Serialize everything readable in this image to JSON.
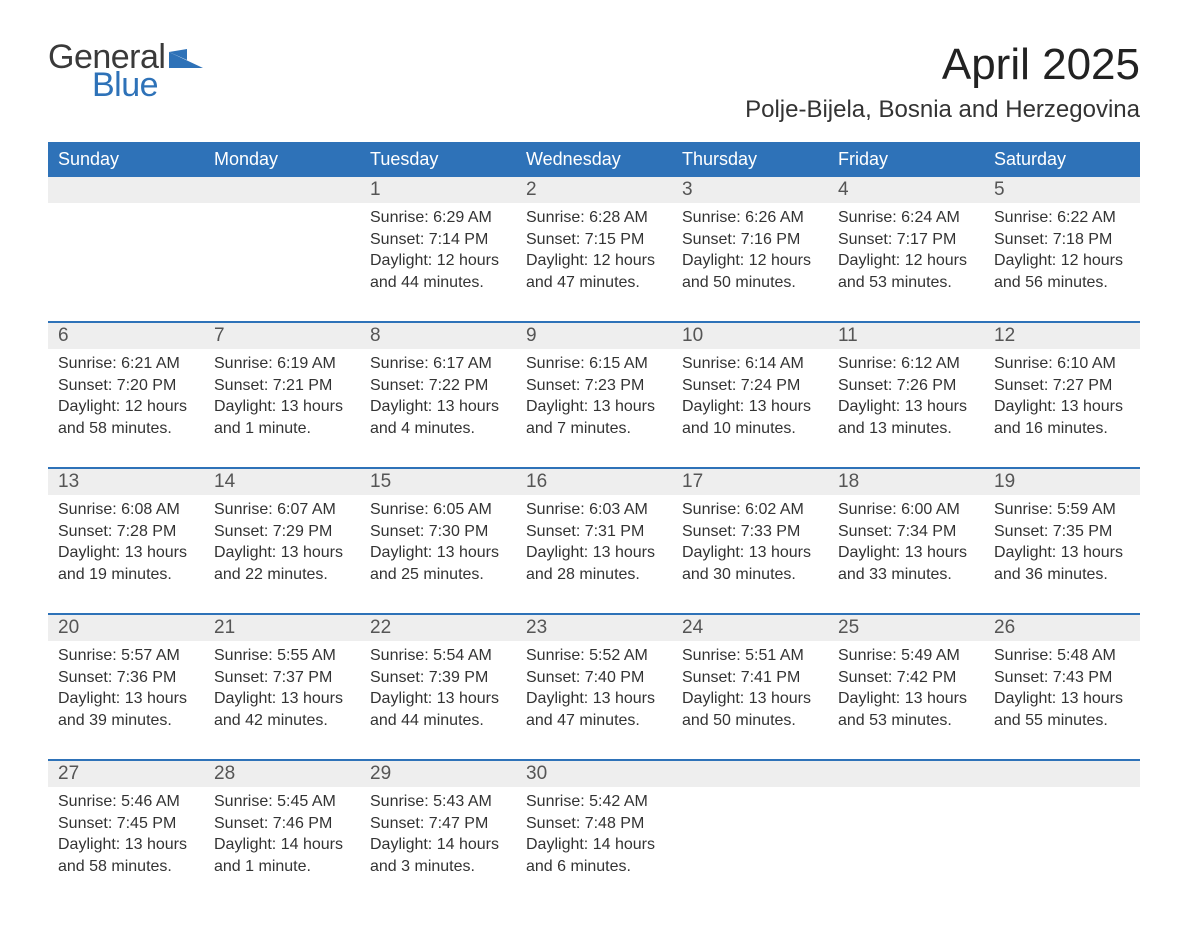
{
  "brand": {
    "word1": "General",
    "word2": "Blue",
    "mark_color": "#2e72b8"
  },
  "title": "April 2025",
  "location": "Polje-Bijela, Bosnia and Herzegovina",
  "colors": {
    "header_bg": "#2e72b8",
    "header_fg": "#ffffff",
    "daynum_bg": "#eeeeee",
    "text": "#333333"
  },
  "day_names": [
    "Sunday",
    "Monday",
    "Tuesday",
    "Wednesday",
    "Thursday",
    "Friday",
    "Saturday"
  ],
  "weeks": [
    [
      {
        "n": "",
        "lines": []
      },
      {
        "n": "",
        "lines": []
      },
      {
        "n": "1",
        "lines": [
          "Sunrise: 6:29 AM",
          "Sunset: 7:14 PM",
          "Daylight: 12 hours and 44 minutes."
        ]
      },
      {
        "n": "2",
        "lines": [
          "Sunrise: 6:28 AM",
          "Sunset: 7:15 PM",
          "Daylight: 12 hours and 47 minutes."
        ]
      },
      {
        "n": "3",
        "lines": [
          "Sunrise: 6:26 AM",
          "Sunset: 7:16 PM",
          "Daylight: 12 hours and 50 minutes."
        ]
      },
      {
        "n": "4",
        "lines": [
          "Sunrise: 6:24 AM",
          "Sunset: 7:17 PM",
          "Daylight: 12 hours and 53 minutes."
        ]
      },
      {
        "n": "5",
        "lines": [
          "Sunrise: 6:22 AM",
          "Sunset: 7:18 PM",
          "Daylight: 12 hours and 56 minutes."
        ]
      }
    ],
    [
      {
        "n": "6",
        "lines": [
          "Sunrise: 6:21 AM",
          "Sunset: 7:20 PM",
          "Daylight: 12 hours and 58 minutes."
        ]
      },
      {
        "n": "7",
        "lines": [
          "Sunrise: 6:19 AM",
          "Sunset: 7:21 PM",
          "Daylight: 13 hours and 1 minute."
        ]
      },
      {
        "n": "8",
        "lines": [
          "Sunrise: 6:17 AM",
          "Sunset: 7:22 PM",
          "Daylight: 13 hours and 4 minutes."
        ]
      },
      {
        "n": "9",
        "lines": [
          "Sunrise: 6:15 AM",
          "Sunset: 7:23 PM",
          "Daylight: 13 hours and 7 minutes."
        ]
      },
      {
        "n": "10",
        "lines": [
          "Sunrise: 6:14 AM",
          "Sunset: 7:24 PM",
          "Daylight: 13 hours and 10 minutes."
        ]
      },
      {
        "n": "11",
        "lines": [
          "Sunrise: 6:12 AM",
          "Sunset: 7:26 PM",
          "Daylight: 13 hours and 13 minutes."
        ]
      },
      {
        "n": "12",
        "lines": [
          "Sunrise: 6:10 AM",
          "Sunset: 7:27 PM",
          "Daylight: 13 hours and 16 minutes."
        ]
      }
    ],
    [
      {
        "n": "13",
        "lines": [
          "Sunrise: 6:08 AM",
          "Sunset: 7:28 PM",
          "Daylight: 13 hours and 19 minutes."
        ]
      },
      {
        "n": "14",
        "lines": [
          "Sunrise: 6:07 AM",
          "Sunset: 7:29 PM",
          "Daylight: 13 hours and 22 minutes."
        ]
      },
      {
        "n": "15",
        "lines": [
          "Sunrise: 6:05 AM",
          "Sunset: 7:30 PM",
          "Daylight: 13 hours and 25 minutes."
        ]
      },
      {
        "n": "16",
        "lines": [
          "Sunrise: 6:03 AM",
          "Sunset: 7:31 PM",
          "Daylight: 13 hours and 28 minutes."
        ]
      },
      {
        "n": "17",
        "lines": [
          "Sunrise: 6:02 AM",
          "Sunset: 7:33 PM",
          "Daylight: 13 hours and 30 minutes."
        ]
      },
      {
        "n": "18",
        "lines": [
          "Sunrise: 6:00 AM",
          "Sunset: 7:34 PM",
          "Daylight: 13 hours and 33 minutes."
        ]
      },
      {
        "n": "19",
        "lines": [
          "Sunrise: 5:59 AM",
          "Sunset: 7:35 PM",
          "Daylight: 13 hours and 36 minutes."
        ]
      }
    ],
    [
      {
        "n": "20",
        "lines": [
          "Sunrise: 5:57 AM",
          "Sunset: 7:36 PM",
          "Daylight: 13 hours and 39 minutes."
        ]
      },
      {
        "n": "21",
        "lines": [
          "Sunrise: 5:55 AM",
          "Sunset: 7:37 PM",
          "Daylight: 13 hours and 42 minutes."
        ]
      },
      {
        "n": "22",
        "lines": [
          "Sunrise: 5:54 AM",
          "Sunset: 7:39 PM",
          "Daylight: 13 hours and 44 minutes."
        ]
      },
      {
        "n": "23",
        "lines": [
          "Sunrise: 5:52 AM",
          "Sunset: 7:40 PM",
          "Daylight: 13 hours and 47 minutes."
        ]
      },
      {
        "n": "24",
        "lines": [
          "Sunrise: 5:51 AM",
          "Sunset: 7:41 PM",
          "Daylight: 13 hours and 50 minutes."
        ]
      },
      {
        "n": "25",
        "lines": [
          "Sunrise: 5:49 AM",
          "Sunset: 7:42 PM",
          "Daylight: 13 hours and 53 minutes."
        ]
      },
      {
        "n": "26",
        "lines": [
          "Sunrise: 5:48 AM",
          "Sunset: 7:43 PM",
          "Daylight: 13 hours and 55 minutes."
        ]
      }
    ],
    [
      {
        "n": "27",
        "lines": [
          "Sunrise: 5:46 AM",
          "Sunset: 7:45 PM",
          "Daylight: 13 hours and 58 minutes."
        ]
      },
      {
        "n": "28",
        "lines": [
          "Sunrise: 5:45 AM",
          "Sunset: 7:46 PM",
          "Daylight: 14 hours and 1 minute."
        ]
      },
      {
        "n": "29",
        "lines": [
          "Sunrise: 5:43 AM",
          "Sunset: 7:47 PM",
          "Daylight: 14 hours and 3 minutes."
        ]
      },
      {
        "n": "30",
        "lines": [
          "Sunrise: 5:42 AM",
          "Sunset: 7:48 PM",
          "Daylight: 14 hours and 6 minutes."
        ]
      },
      {
        "n": "",
        "lines": []
      },
      {
        "n": "",
        "lines": []
      },
      {
        "n": "",
        "lines": []
      }
    ]
  ]
}
